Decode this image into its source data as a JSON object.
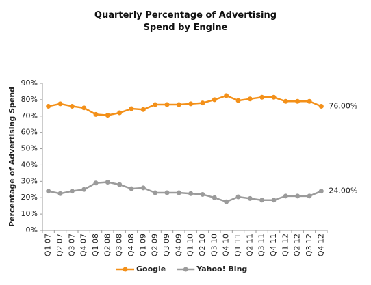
{
  "chart_data": {
    "type": "line",
    "title": "Quarterly Percentage of Advertising Spend by Engine",
    "y_label": "Percentage of Advertising Spend",
    "categories": [
      "Q1 07",
      "Q2 07",
      "Q3 07",
      "Q4 07",
      "Q1 08",
      "Q2 08",
      "Q3 08",
      "Q4 08",
      "Q1 09",
      "Q2 09",
      "Q3 09",
      "Q4 09",
      "Q1 10",
      "Q2 10",
      "Q3 10",
      "Q4 10",
      "Q1 11",
      "Q2 11",
      "Q3 11",
      "Q4 11",
      "Q1 12",
      "Q2 12",
      "Q3 12",
      "Q4 12"
    ],
    "series": [
      {
        "name": "Google",
        "color": "#f39019",
        "values": [
          76,
          77.5,
          76,
          75,
          71,
          70.5,
          72,
          74.5,
          74,
          77,
          77,
          77,
          77.5,
          78,
          80,
          82.5,
          79.5,
          80.5,
          81.5,
          81.5,
          79,
          79,
          79,
          76
        ],
        "value_labels": [
          null,
          null,
          null,
          null,
          null,
          null,
          null,
          null,
          null,
          null,
          null,
          null,
          null,
          null,
          null,
          null,
          null,
          null,
          null,
          null,
          null,
          null,
          null,
          "76.00%"
        ]
      },
      {
        "name": "Yahoo! Bing",
        "color": "#9b9b9b",
        "values": [
          24,
          22.5,
          24,
          25,
          29,
          29.5,
          28,
          25.5,
          26,
          23,
          23,
          23,
          22.5,
          22,
          20,
          17.5,
          20.5,
          19.5,
          18.5,
          18.5,
          21,
          21,
          21,
          24
        ],
        "value_labels": [
          null,
          null,
          null,
          null,
          null,
          null,
          null,
          null,
          null,
          null,
          null,
          null,
          null,
          null,
          null,
          null,
          null,
          null,
          null,
          null,
          null,
          null,
          null,
          "24.00%"
        ]
      }
    ],
    "ylim": [
      0,
      90
    ],
    "yticks": [
      {
        "value": 0,
        "label": "0%"
      },
      {
        "value": 10,
        "label": "10%"
      },
      {
        "value": 20,
        "label": "20%"
      },
      {
        "value": 30,
        "label": "30%"
      },
      {
        "value": 40,
        "label": "40%"
      },
      {
        "value": 50,
        "label": "50%"
      },
      {
        "value": 60,
        "label": "60%"
      },
      {
        "value": 70,
        "label": "70%"
      },
      {
        "value": 80,
        "label": "80%"
      },
      {
        "value": 90,
        "label": "90%"
      }
    ],
    "grid": false,
    "legend": "bottom"
  }
}
